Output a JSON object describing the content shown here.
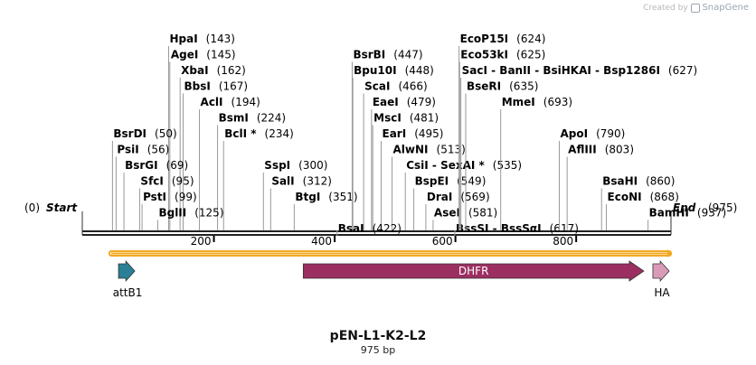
{
  "watermark": {
    "prefix": "Created by",
    "brand": "SnapGene"
  },
  "plasmid": {
    "name": "pEN-L1-K2-L2",
    "length_label": "975 bp",
    "length": 975
  },
  "ends": {
    "start": {
      "label": "Start",
      "pos_label": "(0)"
    },
    "end": {
      "label": "End",
      "pos_label": "(975)"
    }
  },
  "ticks": [
    200,
    400,
    600,
    800
  ],
  "sites": [
    {
      "name": "HpaI",
      "pos": 143,
      "pos_label": "(143)",
      "row": 0
    },
    {
      "name": "AgeI",
      "pos": 145,
      "pos_label": "(145)",
      "row": 1
    },
    {
      "name": "XbaI",
      "pos": 162,
      "pos_label": "(162)",
      "row": 2
    },
    {
      "name": "BbsI",
      "pos": 167,
      "pos_label": "(167)",
      "row": 3
    },
    {
      "name": "AclI",
      "pos": 194,
      "pos_label": "(194)",
      "row": 4
    },
    {
      "name": "BsmI",
      "pos": 224,
      "pos_label": "(224)",
      "row": 5
    },
    {
      "name": "BclI *",
      "pos": 234,
      "pos_label": "(234)",
      "row": 6
    },
    {
      "name": "BsrDI",
      "pos": 50,
      "pos_label": "(50)",
      "row": 6
    },
    {
      "name": "PsiI",
      "pos": 56,
      "pos_label": "(56)",
      "row": 7
    },
    {
      "name": "BsrGI",
      "pos": 69,
      "pos_label": "(69)",
      "row": 8
    },
    {
      "name": "SfcI",
      "pos": 95,
      "pos_label": "(95)",
      "row": 9
    },
    {
      "name": "PstI",
      "pos": 99,
      "pos_label": "(99)",
      "row": 10
    },
    {
      "name": "BglII",
      "pos": 125,
      "pos_label": "(125)",
      "row": 11
    },
    {
      "name": "SspI",
      "pos": 300,
      "pos_label": "(300)",
      "row": 8
    },
    {
      "name": "SalI",
      "pos": 312,
      "pos_label": "(312)",
      "row": 9
    },
    {
      "name": "BtgI",
      "pos": 351,
      "pos_label": "(351)",
      "row": 10
    },
    {
      "name": "BsrBI",
      "pos": 447,
      "pos_label": "(447)",
      "row": 1
    },
    {
      "name": "Bpu10I",
      "pos": 448,
      "pos_label": "(448)",
      "row": 2
    },
    {
      "name": "ScaI",
      "pos": 466,
      "pos_label": "(466)",
      "row": 3
    },
    {
      "name": "EaeI",
      "pos": 479,
      "pos_label": "(479)",
      "row": 4
    },
    {
      "name": "MscI",
      "pos": 481,
      "pos_label": "(481)",
      "row": 5
    },
    {
      "name": "EarI",
      "pos": 495,
      "pos_label": "(495)",
      "row": 6
    },
    {
      "name": "AlwNI",
      "pos": 513,
      "pos_label": "(513)",
      "row": 7
    },
    {
      "name": "CsiI - SexAI *",
      "pos": 535,
      "pos_label": "(535)",
      "row": 8
    },
    {
      "name": "BspEI",
      "pos": 549,
      "pos_label": "(549)",
      "row": 9
    },
    {
      "name": "DraI",
      "pos": 569,
      "pos_label": "(569)",
      "row": 10
    },
    {
      "name": "AseI",
      "pos": 581,
      "pos_label": "(581)",
      "row": 11
    },
    {
      "name": "BsaI",
      "pos": 422,
      "pos_label": "(422)",
      "row": 12
    },
    {
      "name": "BssSI - BssSαI",
      "pos": 617,
      "pos_label": "(617)",
      "row": 12
    },
    {
      "name": "EcoP15I",
      "pos": 624,
      "pos_label": "(624)",
      "row": 0
    },
    {
      "name": "Eco53kI",
      "pos": 625,
      "pos_label": "(625)",
      "row": 1
    },
    {
      "name": "SacI - BanII - BsiHKAI - Bsp1286I",
      "pos": 627,
      "pos_label": "(627)",
      "row": 2
    },
    {
      "name": "BseRI",
      "pos": 635,
      "pos_label": "(635)",
      "row": 3
    },
    {
      "name": "MmeI",
      "pos": 693,
      "pos_label": "(693)",
      "row": 4
    },
    {
      "name": "ApoI",
      "pos": 790,
      "pos_label": "(790)",
      "row": 6
    },
    {
      "name": "AflIII",
      "pos": 803,
      "pos_label": "(803)",
      "row": 7
    },
    {
      "name": "BsaHI",
      "pos": 860,
      "pos_label": "(860)",
      "row": 9
    },
    {
      "name": "EcoNI",
      "pos": 868,
      "pos_label": "(868)",
      "row": 10
    },
    {
      "name": "BamHI",
      "pos": 937,
      "pos_label": "(937)",
      "row": 11
    }
  ],
  "features": [
    {
      "name": "attB1",
      "start": 60,
      "end": 87,
      "color": "#2a7f96"
    },
    {
      "name": "DHFR",
      "start": 366,
      "end": 930,
      "color": "#9b2f61"
    },
    {
      "name": "HA",
      "start": 945,
      "end": 972,
      "color": "#d99ab8"
    }
  ],
  "colors": {
    "orf": "#f2a922",
    "backbone": "#222222",
    "label_line": "#999999"
  }
}
